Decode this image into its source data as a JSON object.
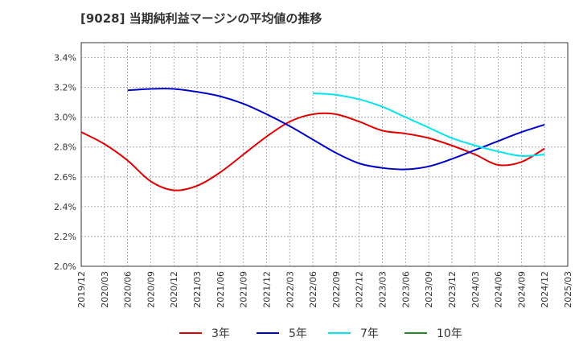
{
  "chart_data": {
    "type": "line",
    "title": "[9028]  当期純利益マージンの平均値の推移",
    "xlabel": "",
    "ylabel": "",
    "x_ticks": [
      "2019/12",
      "2020/03",
      "2020/06",
      "2020/09",
      "2020/12",
      "2021/03",
      "2021/06",
      "2021/09",
      "2021/12",
      "2022/03",
      "2022/06",
      "2022/09",
      "2022/12",
      "2023/03",
      "2023/06",
      "2023/09",
      "2023/12",
      "2024/03",
      "2024/06",
      "2024/09",
      "2024/12",
      "2025/03"
    ],
    "y_ticks": [
      "2.0%",
      "2.2%",
      "2.4%",
      "2.6%",
      "2.8%",
      "3.0%",
      "3.2%",
      "3.4%"
    ],
    "ylim": [
      2.0,
      3.5
    ],
    "grid": true,
    "legend_position": "bottom",
    "series": [
      {
        "name": "3年",
        "color": "#e00000",
        "x": [
          "2019/12",
          "2020/03",
          "2020/06",
          "2020/09",
          "2020/12",
          "2021/03",
          "2021/06",
          "2021/09",
          "2021/12",
          "2022/03",
          "2022/06",
          "2022/09",
          "2022/12",
          "2023/03",
          "2023/06",
          "2023/09",
          "2023/12",
          "2024/03",
          "2024/06",
          "2024/09",
          "2024/12"
        ],
        "values": [
          2.9,
          2.82,
          2.71,
          2.57,
          2.51,
          2.54,
          2.63,
          2.75,
          2.87,
          2.97,
          3.02,
          3.02,
          2.97,
          2.91,
          2.89,
          2.86,
          2.81,
          2.75,
          2.68,
          2.7,
          2.79
        ]
      },
      {
        "name": "5年",
        "color": "#0000cc",
        "x": [
          "2020/06",
          "2020/09",
          "2020/12",
          "2021/03",
          "2021/06",
          "2021/09",
          "2021/12",
          "2022/03",
          "2022/06",
          "2022/09",
          "2022/12",
          "2023/03",
          "2023/06",
          "2023/09",
          "2023/12",
          "2024/03",
          "2024/06",
          "2024/09",
          "2024/12"
        ],
        "values": [
          3.18,
          3.19,
          3.19,
          3.17,
          3.14,
          3.09,
          3.02,
          2.94,
          2.85,
          2.76,
          2.69,
          2.66,
          2.65,
          2.67,
          2.72,
          2.78,
          2.84,
          2.9,
          2.95
        ]
      },
      {
        "name": "7年",
        "color": "#00e5ee",
        "x": [
          "2022/06",
          "2022/09",
          "2022/12",
          "2023/03",
          "2023/06",
          "2023/09",
          "2023/12",
          "2024/03",
          "2024/06",
          "2024/09",
          "2024/12"
        ],
        "values": [
          3.16,
          3.15,
          3.12,
          3.07,
          3.0,
          2.93,
          2.86,
          2.81,
          2.77,
          2.74,
          2.75
        ]
      },
      {
        "name": "10年",
        "color": "#228b22",
        "x": [],
        "values": []
      }
    ]
  }
}
